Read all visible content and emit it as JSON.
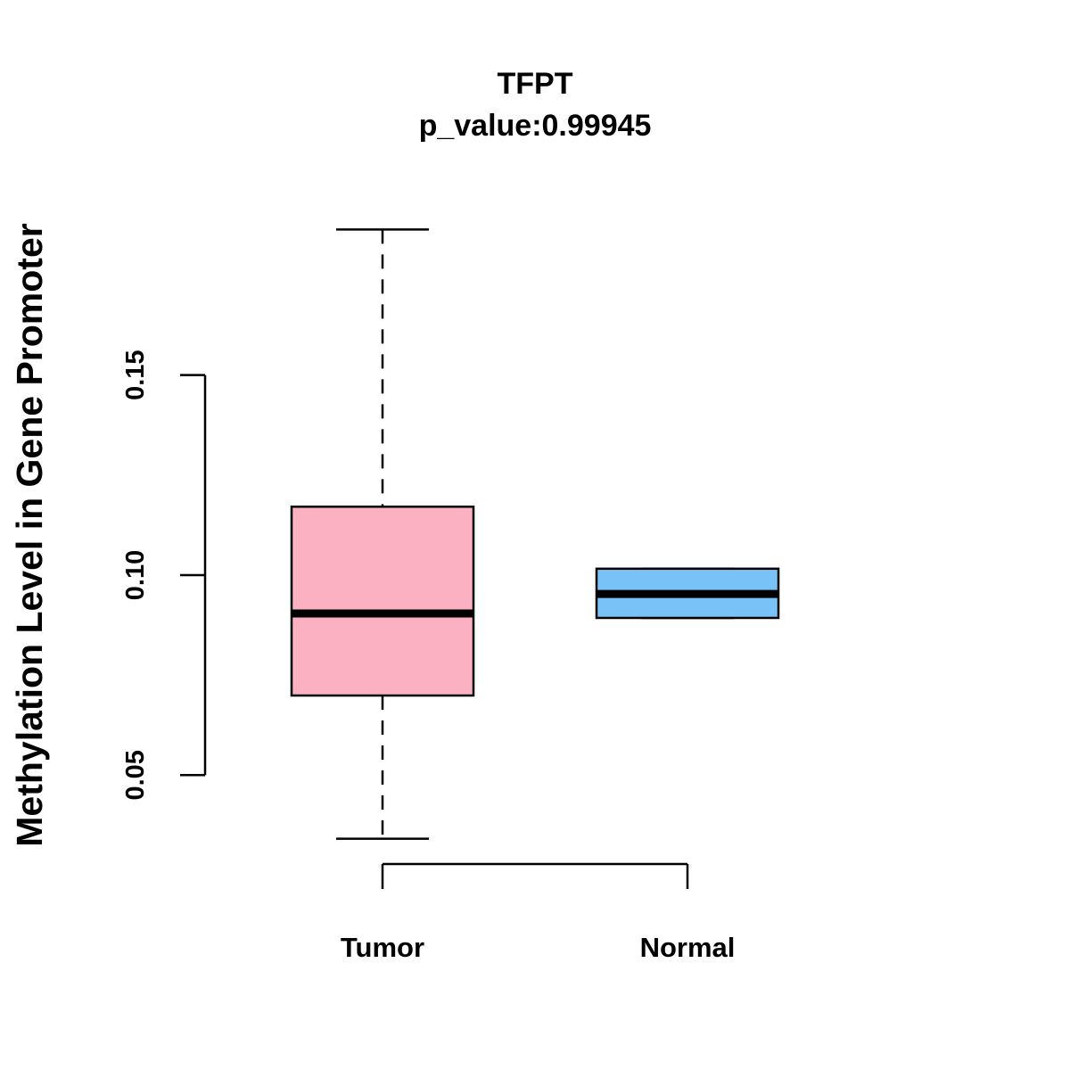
{
  "chart_data": {
    "type": "boxplot",
    "title": "TFPT",
    "subtitle": "p_value:0.99945",
    "xlabel": "",
    "ylabel": "Methylation Level in Gene Promoter",
    "ylim": [
      0.028,
      0.1925
    ],
    "yticks": [
      0.05,
      0.1,
      0.15
    ],
    "ytick_labels": [
      "0.05",
      "0.10",
      "0.15"
    ],
    "grid": false,
    "categories": [
      "Tumor",
      "Normal"
    ],
    "series": [
      {
        "name": "Tumor",
        "color": "#FBB1C2",
        "whisker_low": 0.0341,
        "q1": 0.0699,
        "median": 0.0904,
        "q3": 0.1171,
        "whisker_high": 0.1864
      },
      {
        "name": "Normal",
        "color": "#78C2F8",
        "whisker_low": 0.0893,
        "q1": 0.0893,
        "median": 0.0953,
        "q3": 0.1016,
        "whisker_high": 0.1016
      }
    ]
  }
}
